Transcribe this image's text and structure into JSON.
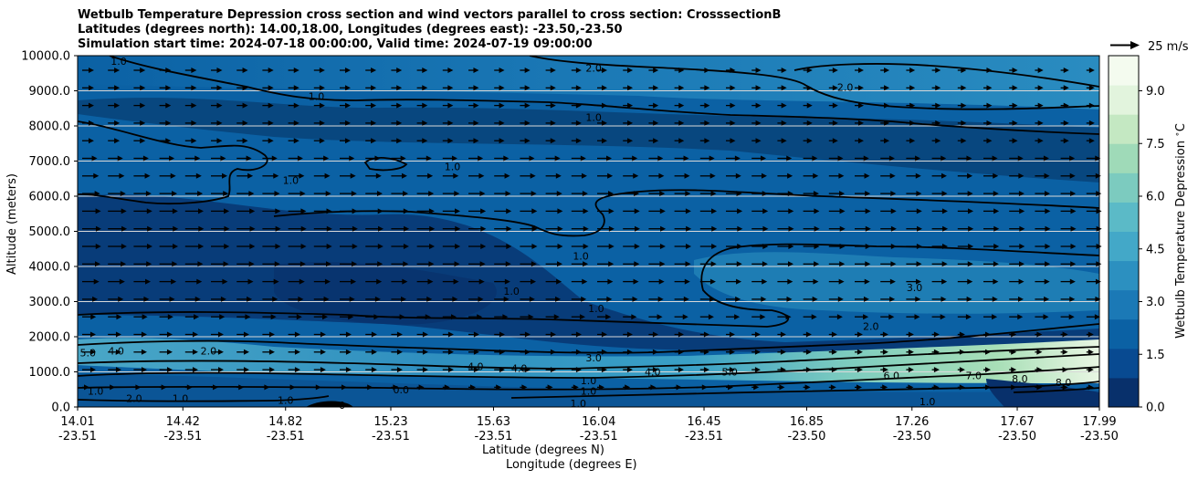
{
  "chart_data": {
    "type": "heatmap",
    "title_lines": [
      "Wetbulb Temperature Depression cross section and wind vectors parallel to cross section: CrosssectionB",
      "Latitudes (degrees north): 14.00,18.00, Longitudes (degrees east): -23.50,-23.50",
      "Simulation start time: 2024-07-18 00:00:00, Valid time: 2024-07-19 09:00:00"
    ],
    "xlabel_lat": "Latitude (degrees N)",
    "xlabel_lon": "Longitude (degrees E)",
    "ylabel": "Altitude (meters)",
    "ylim": [
      0,
      10000
    ],
    "xlim": [
      14.01,
      17.99
    ],
    "y_ticks": [
      "0.0",
      "1000.0",
      "2000.0",
      "3000.0",
      "4000.0",
      "5000.0",
      "6000.0",
      "7000.0",
      "8000.0",
      "9000.0",
      "10000.0"
    ],
    "x_ticks": [
      {
        "lat": "14.01",
        "lon": "-23.51"
      },
      {
        "lat": "14.42",
        "lon": "-23.51"
      },
      {
        "lat": "14.82",
        "lon": "-23.51"
      },
      {
        "lat": "15.23",
        "lon": "-23.51"
      },
      {
        "lat": "15.63",
        "lon": "-23.51"
      },
      {
        "lat": "16.04",
        "lon": "-23.51"
      },
      {
        "lat": "16.45",
        "lon": "-23.51"
      },
      {
        "lat": "16.85",
        "lon": "-23.50"
      },
      {
        "lat": "17.26",
        "lon": "-23.50"
      },
      {
        "lat": "17.67",
        "lon": "-23.50"
      },
      {
        "lat": "17.99",
        "lon": "-23.50"
      }
    ],
    "colorbar": {
      "label": "Wetbulb Temperature Depression $^\\circ$C",
      "ticks": [
        "0.0",
        "1.5",
        "3.0",
        "4.5",
        "6.0",
        "7.5",
        "9.0"
      ],
      "range": [
        0,
        10
      ],
      "colormap": [
        "#08306b",
        "#084a91",
        "#0b61a4",
        "#1b79b6",
        "#2c90c0",
        "#43a8c8",
        "#5bbac7",
        "#7ccbbf",
        "#9fdab8",
        "#c4e8c2",
        "#e2f4dd",
        "#f4fbef"
      ]
    },
    "wind_vector_key": "25 m/s",
    "contour_labels": [
      {
        "text": "1.0",
        "lat": 14.17,
        "alt": 9850
      },
      {
        "text": "1.0",
        "lat": 14.94,
        "alt": 8850
      },
      {
        "text": "2.0",
        "lat": 16.02,
        "alt": 9650
      },
      {
        "text": "2.0",
        "lat": 17.0,
        "alt": 9100
      },
      {
        "text": "1.0",
        "lat": 16.02,
        "alt": 8250
      },
      {
        "text": "1.0",
        "lat": 14.84,
        "alt": 6450
      },
      {
        "text": "1.0",
        "lat": 15.47,
        "alt": 6850
      },
      {
        "text": "1.0",
        "lat": 15.97,
        "alt": 4300
      },
      {
        "text": "1.0",
        "lat": 15.7,
        "alt": 3300
      },
      {
        "text": "1.0",
        "lat": 16.03,
        "alt": 2800
      },
      {
        "text": "3.0",
        "lat": 17.27,
        "alt": 3400
      },
      {
        "text": "2.0",
        "lat": 17.1,
        "alt": 2300
      },
      {
        "text": "3.0",
        "lat": 16.02,
        "alt": 1400
      },
      {
        "text": "5.0",
        "lat": 14.05,
        "alt": 1550
      },
      {
        "text": "4.0",
        "lat": 14.16,
        "alt": 1600
      },
      {
        "text": "2.0",
        "lat": 14.52,
        "alt": 1600
      },
      {
        "text": "4.0",
        "lat": 15.56,
        "alt": 1150
      },
      {
        "text": "4.0",
        "lat": 15.73,
        "alt": 1100
      },
      {
        "text": "4.0",
        "lat": 16.25,
        "alt": 1000
      },
      {
        "text": "5.0",
        "lat": 16.55,
        "alt": 1000
      },
      {
        "text": "6.0",
        "lat": 17.18,
        "alt": 900
      },
      {
        "text": "7.0",
        "lat": 17.5,
        "alt": 900
      },
      {
        "text": "8.0",
        "lat": 17.68,
        "alt": 800
      },
      {
        "text": "8.0",
        "lat": 17.85,
        "alt": 700
      },
      {
        "text": "1.0",
        "lat": 16.0,
        "alt": 750
      },
      {
        "text": "1.0",
        "lat": 16.0,
        "alt": 450
      },
      {
        "text": "1.0",
        "lat": 15.96,
        "alt": 100
      },
      {
        "text": "1.0",
        "lat": 17.32,
        "alt": 150
      },
      {
        "text": "1.0",
        "lat": 14.08,
        "alt": 450
      },
      {
        "text": "2.0",
        "lat": 14.23,
        "alt": 250
      },
      {
        "text": "1.0",
        "lat": 14.41,
        "alt": 250
      },
      {
        "text": "1.0",
        "lat": 14.82,
        "alt": 200
      },
      {
        "text": "0.0",
        "lat": 15.27,
        "alt": 500
      },
      {
        "text": "0",
        "lat": 15.04,
        "alt": 50
      }
    ]
  }
}
